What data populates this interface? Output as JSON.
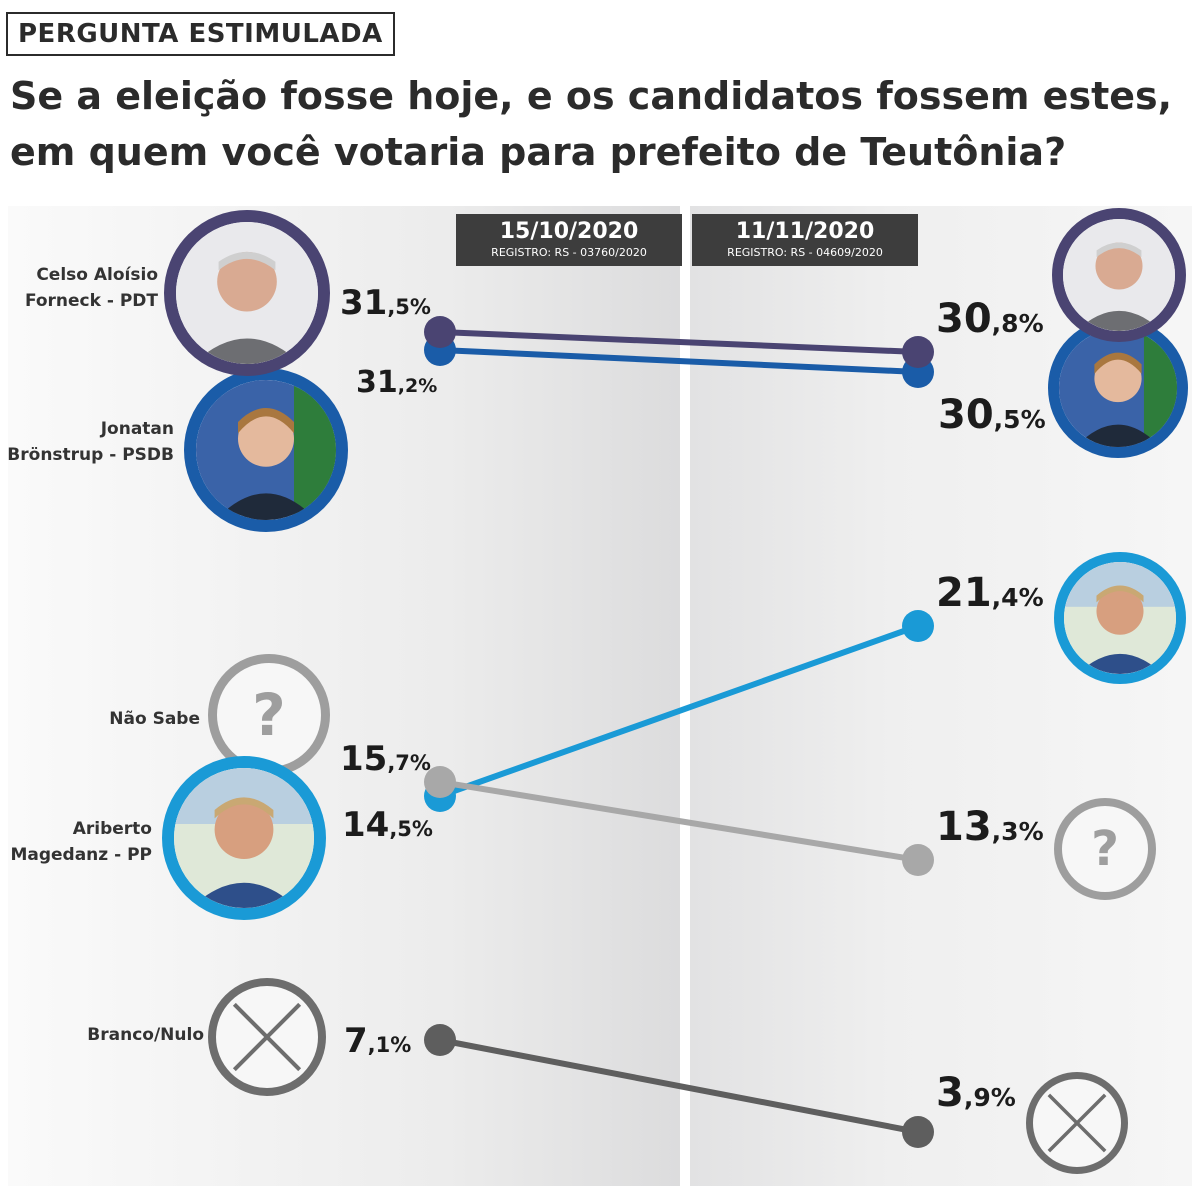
{
  "header": {
    "tag": "PERGUNTA ESTIMULADA",
    "question": "Se a eleição fosse hoje, e os candidatos fossem estes, em quem você votaria para prefeito de Teutônia?"
  },
  "polls": [
    {
      "date": "15/10/2020",
      "registro": "REGISTRO: RS - 03760/2020"
    },
    {
      "date": "11/11/2020",
      "registro": "REGISTRO: RS - 04609/2020"
    }
  ],
  "candidates": [
    {
      "label1": "Celso Aloísio",
      "label2": "Forneck - PDT",
      "color": "#4a4472",
      "icon": "person-photo"
    },
    {
      "label1": "Jonatan",
      "label2": "Brönstrup - PSDB",
      "color": "#1a5ca8",
      "icon": "person-photo"
    },
    {
      "label1": "Não Sabe",
      "label2": "",
      "color": "#a8a8a8",
      "icon": "question-mark-icon"
    },
    {
      "label1": "Ariberto",
      "label2": "Magedanz - PP",
      "color": "#1a9ad6",
      "icon": "person-photo"
    },
    {
      "label1": "Branco/Nulo",
      "label2": "",
      "color": "#5e5e5e",
      "icon": "cross-circle-icon"
    }
  ],
  "icons": {
    "question": "?"
  },
  "chart_data": {
    "type": "line",
    "title": "Se a eleição fosse hoje, e os candidatos fossem estes, em quem você votaria para prefeito de Teutônia?",
    "x": [
      "15/10/2020",
      "11/11/2020"
    ],
    "series": [
      {
        "name": "Celso Aloísio Forneck - PDT",
        "values": [
          31.5,
          30.8
        ],
        "color": "#4a4472",
        "labels": [
          {
            "int": "31",
            "dec": ",5%"
          },
          {
            "int": "30",
            "dec": ",8%"
          }
        ]
      },
      {
        "name": "Jonatan Brönstrup - PSDB",
        "values": [
          31.2,
          30.5
        ],
        "color": "#1a5ca8",
        "labels": [
          {
            "int": "31",
            "dec": ",2%"
          },
          {
            "int": "30",
            "dec": ",5%"
          }
        ]
      },
      {
        "name": "Não Sabe",
        "values": [
          15.7,
          13.3
        ],
        "color": "#a8a8a8",
        "labels": [
          {
            "int": "15",
            "dec": ",7%"
          },
          {
            "int": "13",
            "dec": ",3%"
          }
        ]
      },
      {
        "name": "Ariberto Magedanz - PP",
        "values": [
          14.5,
          21.4
        ],
        "color": "#1a9ad6",
        "labels": [
          {
            "int": "14",
            "dec": ",5%"
          },
          {
            "int": "21",
            "dec": ",4%"
          }
        ]
      },
      {
        "name": "Branco/Nulo",
        "values": [
          7.1,
          3.9
        ],
        "color": "#5e5e5e",
        "labels": [
          {
            "int": "7",
            "dec": ",1%"
          },
          {
            "int": "3",
            "dec": ",9%"
          }
        ]
      }
    ],
    "xlabel": "",
    "ylabel": ""
  }
}
